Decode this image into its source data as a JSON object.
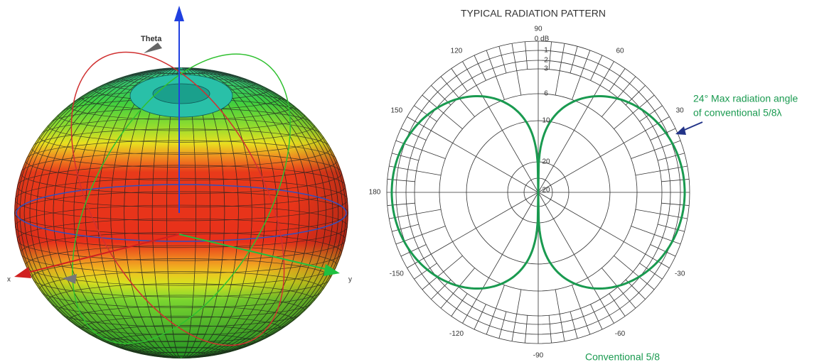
{
  "sphere": {
    "labels": {
      "theta": "Theta",
      "x": "x",
      "y": "y"
    }
  },
  "polar": {
    "title": "TYPICAL RADIATION PATTERN",
    "angle_labels": [
      90,
      120,
      60,
      150,
      30,
      180,
      -150,
      -30,
      -120,
      -60,
      -90
    ],
    "db_labels": [
      "0 dB",
      "1",
      "2",
      "3",
      "6",
      "10",
      "20",
      "20"
    ],
    "annotation": {
      "line1": "24° Max radiation angle",
      "line2": "of conventional 5/8λ"
    },
    "legend": "Conventional 5/8"
  }
}
